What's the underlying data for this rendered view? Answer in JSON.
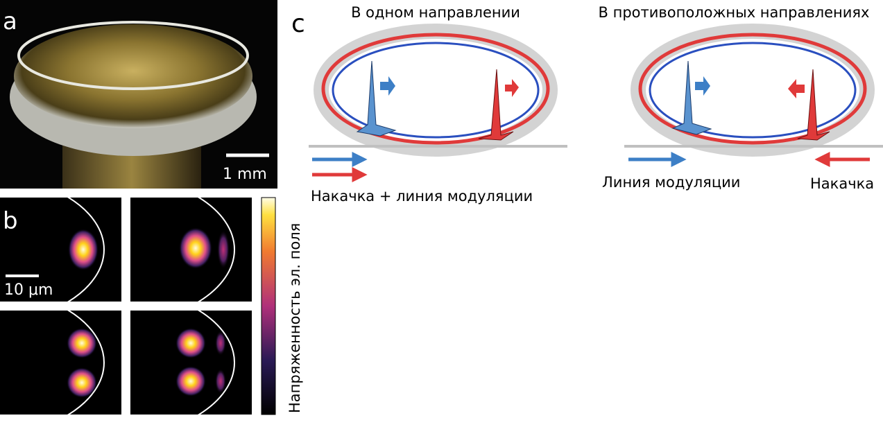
{
  "panels": {
    "a": {
      "label": "a",
      "scale_bar": "1 mm"
    },
    "b": {
      "label": "b",
      "scale_bar": "10 μm",
      "colorbar_label": "Напряженность эл. поля"
    },
    "c": {
      "label": "c",
      "left": {
        "title": "В одном направлении",
        "caption": "Накачка + линия модуляции"
      },
      "right": {
        "title": "В противоположных направлениях",
        "caption_left": "Линия модуляции",
        "caption_right": "Накачка"
      }
    }
  }
}
